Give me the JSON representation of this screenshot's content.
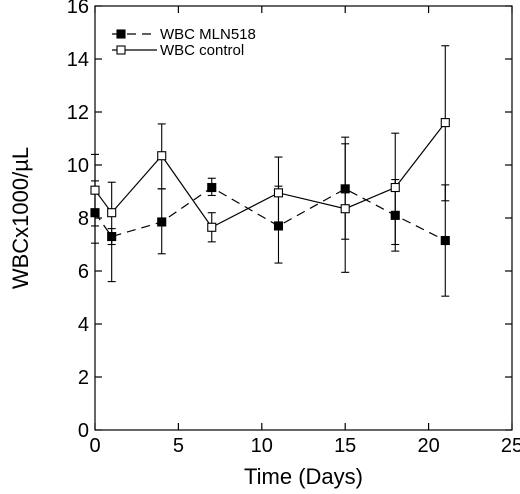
{
  "chart_data": {
    "type": "line",
    "title": "",
    "xlabel": "Time (Days)",
    "ylabel": "WBCx1000/µL",
    "xlim": [
      0,
      25
    ],
    "ylim": [
      0,
      16
    ],
    "xticks": [
      "0",
      "5",
      "10",
      "15",
      "20",
      "25"
    ],
    "yticks": [
      "0",
      "2",
      "4",
      "6",
      "8",
      "10",
      "12",
      "14",
      "16"
    ],
    "grid": false,
    "legend_position": "top-left",
    "series": [
      {
        "name": "WBC MLN518",
        "marker": "filled-square",
        "line_style": "dashed",
        "color": "#000000",
        "x": [
          0,
          1,
          4,
          7,
          11,
          15,
          18,
          21
        ],
        "y": [
          8.2,
          7.3,
          7.85,
          9.15,
          7.7,
          9.1,
          8.1,
          7.15
        ],
        "err_low": [
          7.05,
          7.0,
          6.65,
          8.85,
          6.3,
          7.2,
          6.75,
          5.05
        ],
        "err_high": [
          9.4,
          7.6,
          9.1,
          9.5,
          9.2,
          11.05,
          9.45,
          9.25
        ]
      },
      {
        "name": "WBC control",
        "marker": "open-square",
        "line_style": "solid",
        "color": "#000000",
        "x": [
          0,
          1,
          4,
          7,
          11,
          15,
          18,
          21
        ],
        "y": [
          9.05,
          8.2,
          10.35,
          7.65,
          8.95,
          8.35,
          9.15,
          11.6
        ],
        "err_low": [
          7.7,
          5.6,
          9.1,
          7.1,
          7.6,
          5.95,
          7.0,
          8.65
        ],
        "err_high": [
          10.4,
          9.35,
          11.55,
          8.2,
          10.3,
          10.8,
          11.2,
          14.5
        ]
      }
    ]
  }
}
